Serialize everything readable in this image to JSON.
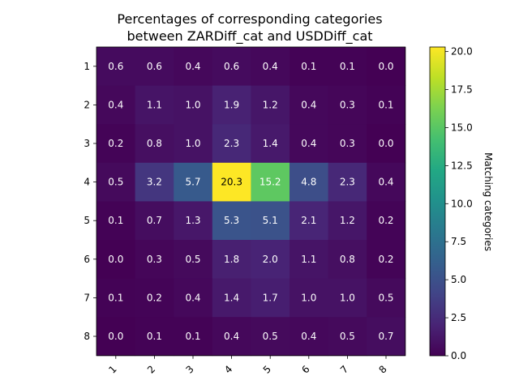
{
  "chart_data": {
    "type": "heatmap",
    "title_lines": [
      "Percentages of corresponding categories",
      "between ZARDiff_cat and USDDiff_cat"
    ],
    "x_categories": [
      "1",
      "2",
      "3",
      "4",
      "5",
      "6",
      "7",
      "8"
    ],
    "y_categories": [
      "1",
      "2",
      "3",
      "4",
      "5",
      "6",
      "7",
      "8"
    ],
    "values": [
      [
        0.6,
        0.6,
        0.4,
        0.6,
        0.4,
        0.1,
        0.1,
        0.0
      ],
      [
        0.4,
        1.1,
        1.0,
        1.9,
        1.2,
        0.4,
        0.3,
        0.1
      ],
      [
        0.2,
        0.8,
        1.0,
        2.3,
        1.4,
        0.4,
        0.3,
        0.0
      ],
      [
        0.5,
        3.2,
        5.7,
        20.3,
        15.2,
        4.8,
        2.3,
        0.4
      ],
      [
        0.1,
        0.7,
        1.3,
        5.3,
        5.1,
        2.1,
        1.2,
        0.2
      ],
      [
        0.0,
        0.3,
        0.5,
        1.8,
        2.0,
        1.1,
        0.8,
        0.2
      ],
      [
        0.1,
        0.2,
        0.4,
        1.4,
        1.7,
        1.0,
        1.0,
        0.5
      ],
      [
        0.0,
        0.1,
        0.1,
        0.4,
        0.5,
        0.4,
        0.5,
        0.7
      ]
    ],
    "colormap": "viridis",
    "colorbar": {
      "label": "Matching categories",
      "min": 0.0,
      "max": 20.3,
      "ticks": [
        "0.0",
        "2.5",
        "5.0",
        "7.5",
        "10.0",
        "12.5",
        "15.0",
        "17.5",
        "20.0"
      ]
    }
  }
}
